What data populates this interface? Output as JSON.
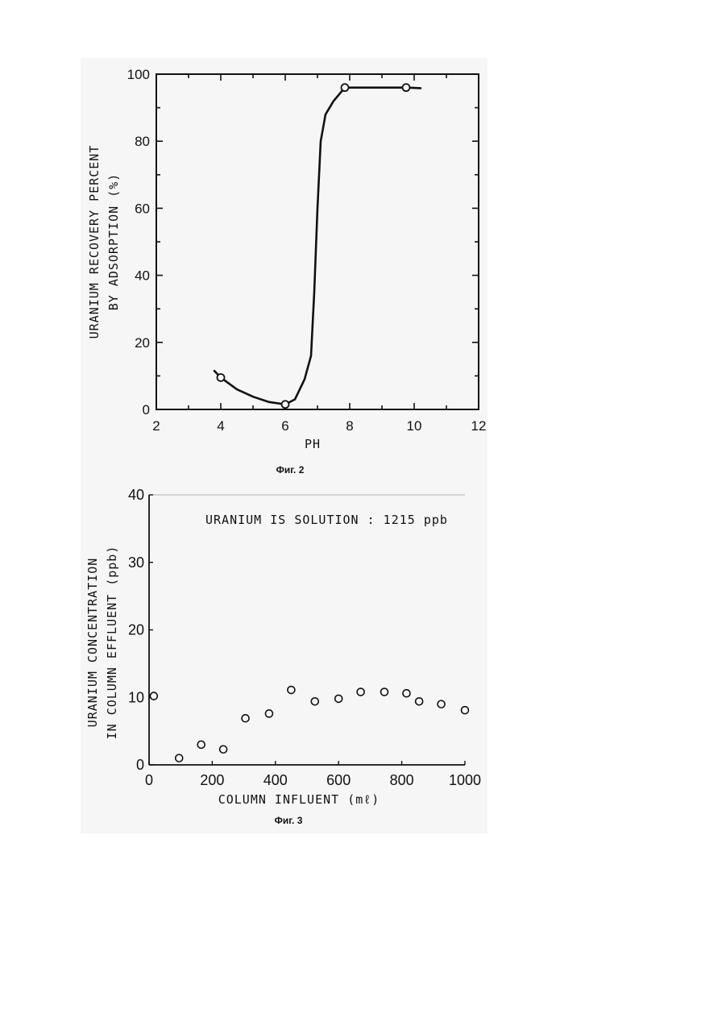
{
  "chart_data": [
    {
      "type": "line",
      "caption": "Фиг. 2",
      "xlabel": "PH",
      "ylabel_lines": [
        "URANIUM RECOVERY PERCENT",
        "BY ADSORPTION (%)"
      ],
      "xlim": [
        2,
        12
      ],
      "ylim": [
        0,
        100
      ],
      "xticks": [
        "2",
        "4",
        "6",
        "8",
        "10",
        "12"
      ],
      "yticks": [
        "0",
        "20",
        "40",
        "60",
        "80",
        "100"
      ],
      "grid": false,
      "series": [
        {
          "x": [
            4.0,
            6.0,
            7.85,
            9.75
          ],
          "y": [
            9.5,
            1.5,
            96.0,
            96.0
          ]
        }
      ],
      "curve": {
        "x": [
          3.8,
          4.0,
          4.5,
          5.0,
          5.5,
          6.0,
          6.3,
          6.6,
          6.8,
          6.9,
          7.0,
          7.1,
          7.25,
          7.5,
          7.85,
          8.5,
          9.0,
          9.75,
          10.2
        ],
        "y": [
          11.5,
          9.5,
          6.0,
          3.8,
          2.2,
          1.5,
          3.0,
          9.0,
          16.0,
          35.0,
          60.0,
          80.0,
          88.0,
          92.0,
          96.0,
          96.0,
          96.0,
          96.0,
          95.8
        ]
      }
    },
    {
      "type": "scatter",
      "caption": "Фиг. 3",
      "xlabel": "COLUMN INFLUENT (mℓ)",
      "ylabel_lines": [
        "URANIUM CONCENTRATION",
        "IN COLUMN EFFLUENT (ppb)"
      ],
      "xlim": [
        0,
        1000
      ],
      "ylim": [
        0,
        40
      ],
      "xticks": [
        "0",
        "200",
        "400",
        "600",
        "800",
        "1000"
      ],
      "yticks": [
        "0",
        "10",
        "20",
        "30",
        "40"
      ],
      "grid": false,
      "annotation": "URANIUM IS SOLUTION : 1215 ppb",
      "series": [
        {
          "x": [
            15,
            95,
            165,
            235,
            305,
            380,
            450,
            525,
            600,
            670,
            745,
            815,
            855,
            925,
            1000
          ],
          "y": [
            10.2,
            1.0,
            3.0,
            2.3,
            6.9,
            7.6,
            11.1,
            9.4,
            9.8,
            10.8,
            10.8,
            10.6,
            9.4,
            9.0,
            8.1
          ]
        }
      ]
    }
  ]
}
